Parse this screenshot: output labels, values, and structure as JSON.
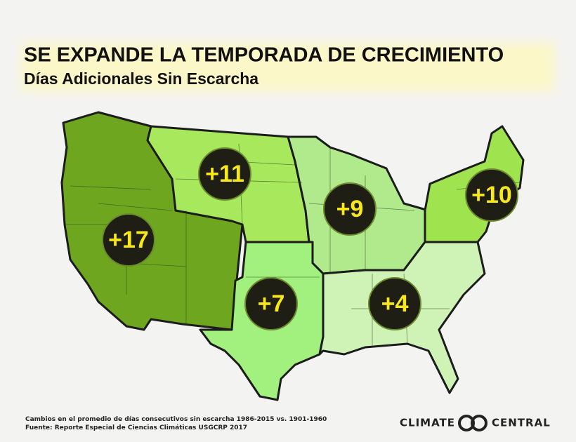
{
  "header": {
    "title": "SE EXPANDE LA TEMPORADA DE CRECIMIENTO",
    "subtitle": "Días Adicionales Sin Escarcha"
  },
  "regions": [
    {
      "label": "+17"
    },
    {
      "label": "+11"
    },
    {
      "label": "+9"
    },
    {
      "label": "+10"
    },
    {
      "label": "+7"
    },
    {
      "label": "+4"
    }
  ],
  "footer": {
    "note": "Cambios en el promedio de días consecutivos sin escarcha 1986-2015 vs. 1901-1960",
    "source": "Fuente: Reporte Especial de Ciencias Climáticas USGCRP 2017"
  },
  "logo": {
    "left": "CLIMATE",
    "right": "CENTRAL"
  }
}
